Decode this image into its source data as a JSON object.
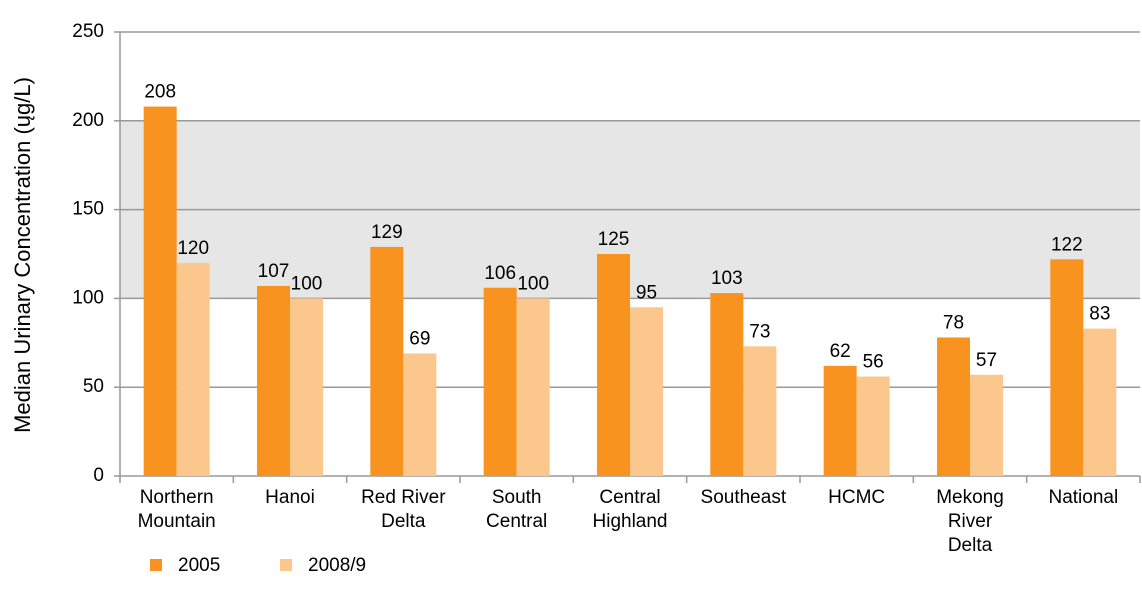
{
  "chart_data": {
    "type": "bar",
    "y_label": "Median Urinary Concentration (ųg/L)",
    "categories": [
      "Northern\nMountain",
      "Hanoi",
      "Red River\nDelta",
      "South\nCentral",
      "Central\nHighland",
      "Southeast",
      "HCMC",
      "Mekong\nRiver\nDelta",
      "National"
    ],
    "series": [
      {
        "name": "2005",
        "color": "#f7931e",
        "values": [
          208,
          107,
          129,
          106,
          125,
          103,
          62,
          78,
          122
        ]
      },
      {
        "name": "2008/9",
        "color": "#fbc78d",
        "values": [
          120,
          100,
          69,
          100,
          95,
          73,
          56,
          57,
          83
        ]
      }
    ],
    "ylim": [
      0,
      250
    ],
    "yticks": [
      0,
      50,
      100,
      150,
      200,
      250
    ],
    "grid": true,
    "band": [
      100,
      200
    ],
    "band_color": "#e6e6e6",
    "legend": "bottom-left"
  }
}
